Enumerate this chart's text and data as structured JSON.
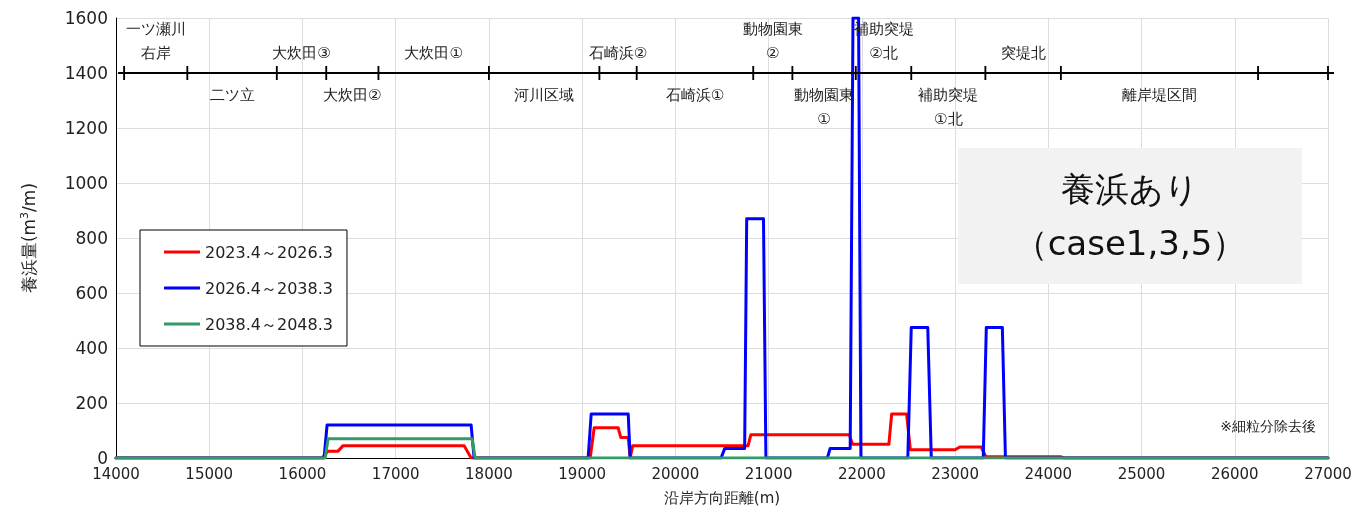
{
  "chart_data": {
    "type": "line",
    "xlabel": "沿岸方向距離(m)",
    "ylabel": "養浜量(m$^{3}$/m)",
    "xlim": [
      14000,
      27000
    ],
    "xticks": [
      14000,
      15000,
      16000,
      17000,
      18000,
      19000,
      20000,
      21000,
      22000,
      23000,
      24000,
      25000,
      26000,
      27000
    ],
    "ylim": [
      0,
      1600
    ],
    "yticks": [
      0,
      200,
      400,
      600,
      800,
      1000,
      1200,
      1400,
      1600
    ],
    "grid": true,
    "legend": "left",
    "marker": "none",
    "line_style": "solid",
    "series": [
      {
        "name": "2023.4～2026.3",
        "color": "#ff0000",
        "x": [
          14000,
          16210,
          16275,
          16382,
          16436,
          17734,
          17809,
          19086,
          19129,
          19386,
          19414,
          19494,
          19515,
          19542,
          20780,
          20810,
          21865,
          21900,
          22290,
          22320,
          22480,
          22520,
          23000,
          23050,
          23280,
          23330,
          24130,
          24170,
          27000
        ],
        "values": [
          0,
          0,
          25,
          25,
          45,
          45,
          0,
          0,
          110,
          110,
          75,
          75,
          0,
          45,
          45,
          85,
          85,
          50,
          50,
          160,
          160,
          30,
          30,
          40,
          40,
          5,
          5,
          0,
          0
        ]
      },
      {
        "name": "2026.4～2038.3",
        "color": "#0000ff",
        "x": [
          14000,
          16232,
          16264,
          17809,
          17841,
          19064,
          19097,
          19494,
          19515,
          20490,
          20530,
          20743,
          20765,
          20945,
          20971,
          21630,
          21660,
          21875,
          21905,
          21965,
          21990,
          22493,
          22530,
          22707,
          22745,
          23302,
          23335,
          23507,
          23540,
          27000
        ],
        "values": [
          0,
          0,
          120,
          120,
          0,
          0,
          160,
          160,
          0,
          0,
          35,
          35,
          870,
          870,
          0,
          0,
          35,
          35,
          1600,
          1600,
          0,
          0,
          475,
          475,
          0,
          0,
          475,
          475,
          0,
          0
        ]
      },
      {
        "name": "2038.4～2048.3",
        "color": "#339966",
        "x": [
          14000,
          16243,
          16275,
          17820,
          17852,
          27000
        ],
        "values": [
          0,
          0,
          70,
          70,
          0,
          0
        ]
      },
      {
        "color": "#000000",
        "marker": "cross",
        "x": [
          14087,
          14765,
          15725,
          16255,
          16815,
          18000,
          19185,
          19585,
          20835,
          21255,
          21935,
          22530,
          23325,
          24135,
          26250,
          27000
        ],
        "values": [
          1400,
          1400,
          1400,
          1400,
          1400,
          1400,
          1400,
          1400,
          1400,
          1400,
          1400,
          1400,
          1400,
          1400,
          1400,
          1400
        ]
      }
    ],
    "annotations": [
      "養浜あり（case1,3,5）",
      "※細粒分除去後",
      "一ツ瀬川右岸",
      "二ツ立",
      "大炊田③",
      "大炊田②",
      "大炊田①",
      "河川区域",
      "石崎浜②",
      "石崎浜①",
      "動物園東②",
      "動物園東①",
      "補助突堤②北",
      "補助突堤①北",
      "突堤北",
      "離岸堤区間"
    ]
  }
}
